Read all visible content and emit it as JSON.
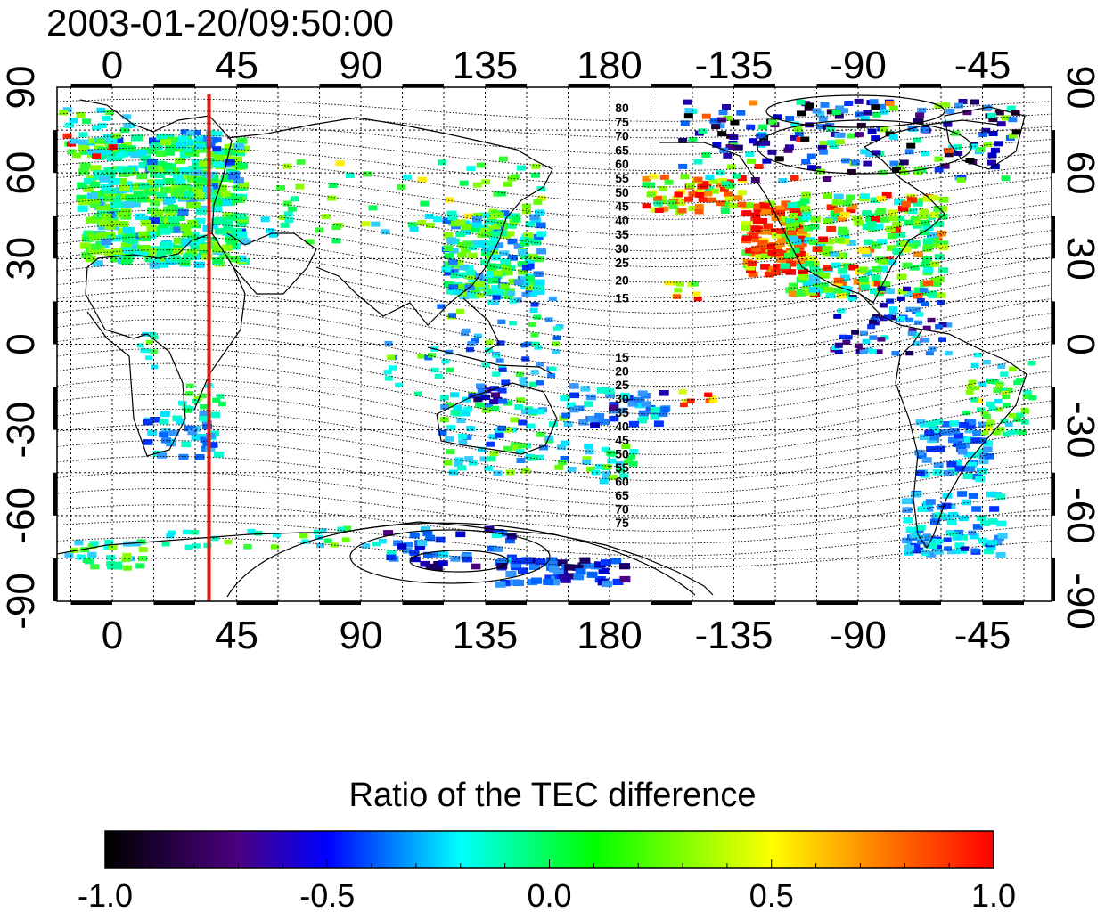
{
  "title": "2003-01-20/09:50:00",
  "x_tick_labels": [
    "0",
    "45",
    "90",
    "135",
    "180",
    "-135",
    "-90",
    "-45"
  ],
  "y_tick_labels": [
    "90",
    "60",
    "30",
    "0",
    "-30",
    "-60",
    "-90"
  ],
  "contour_labels_north": [
    "80",
    "75",
    "70",
    "65",
    "60",
    "55",
    "50",
    "45",
    "40",
    "35",
    "30",
    "25",
    "20",
    "15"
  ],
  "contour_labels_south": [
    "15",
    "20",
    "25",
    "30",
    "35",
    "40",
    "45",
    "50",
    "55",
    "60",
    "65",
    "70",
    "75"
  ],
  "colorbar": {
    "title": "Ratio of the TEC difference",
    "tick_labels": [
      "-1.0",
      "-0.5",
      "0.0",
      "0.5",
      "1.0"
    ],
    "colors": [
      "#000000",
      "#4b0082",
      "#0000ff",
      "#00ffff",
      "#00ff00",
      "#ffff00",
      "#ff8000",
      "#ff0000"
    ]
  },
  "map": {
    "longitude_range": [
      -20,
      340
    ],
    "latitude_range": [
      -90,
      90
    ],
    "meridian_marker_longitude": 35,
    "meridian_marker_color": "#e8140c"
  }
}
